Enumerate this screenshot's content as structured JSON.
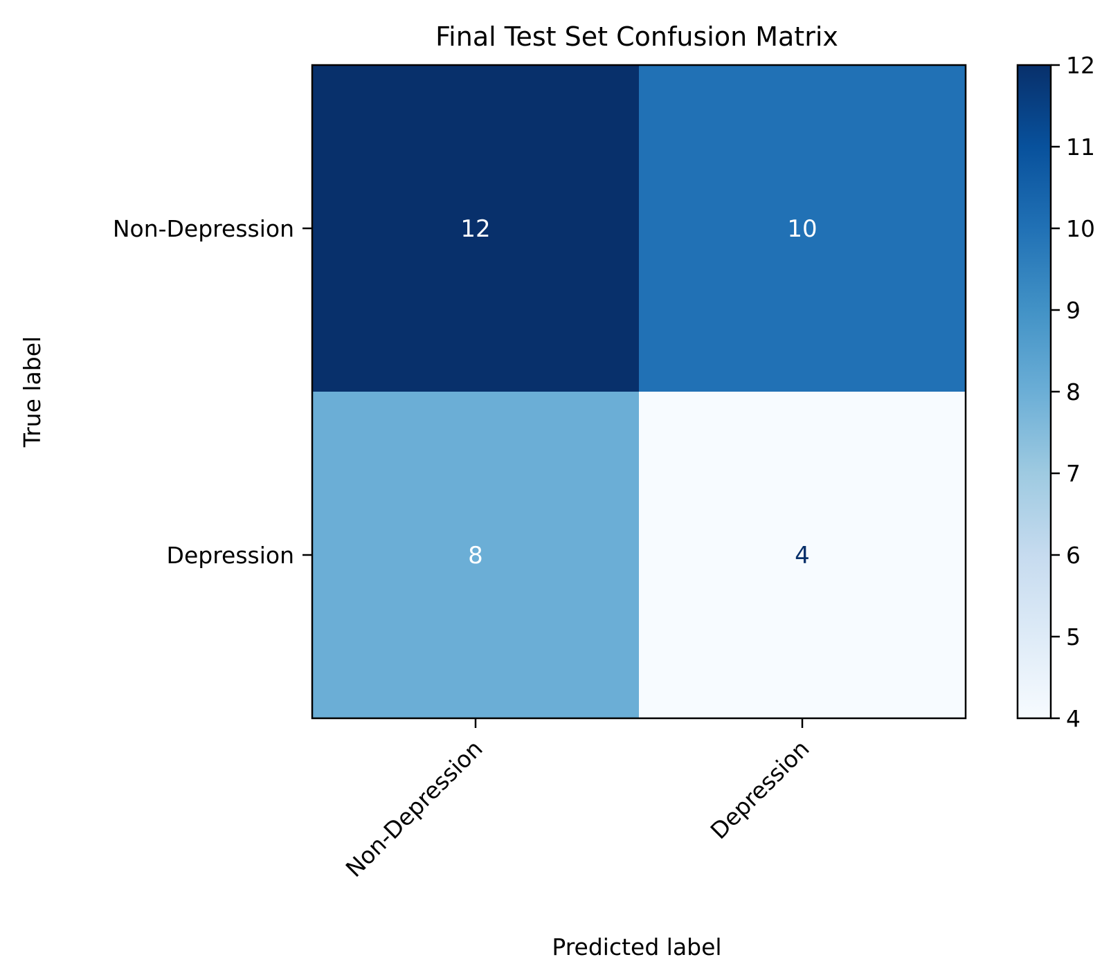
{
  "chart_data": {
    "type": "heatmap",
    "title": "Final Test Set Confusion Matrix",
    "xlabel": "Predicted label",
    "ylabel": "True label",
    "x_categories": [
      "Non-Depression",
      "Depression"
    ],
    "y_categories": [
      "Non-Depression",
      "Depression"
    ],
    "values": [
      [
        12,
        10
      ],
      [
        8,
        4
      ]
    ],
    "colormap": "Blues",
    "colorbar": {
      "min": 4,
      "max": 12,
      "ticks": [
        "4",
        "5",
        "6",
        "7",
        "8",
        "9",
        "10",
        "11",
        "12"
      ]
    },
    "colors": {
      "c12": "#08306b",
      "c10": "#2171b5",
      "c8": "#6baed6",
      "c4": "#f7fbff",
      "text_light": "#ffffff",
      "text_dark": "#08306b"
    }
  }
}
